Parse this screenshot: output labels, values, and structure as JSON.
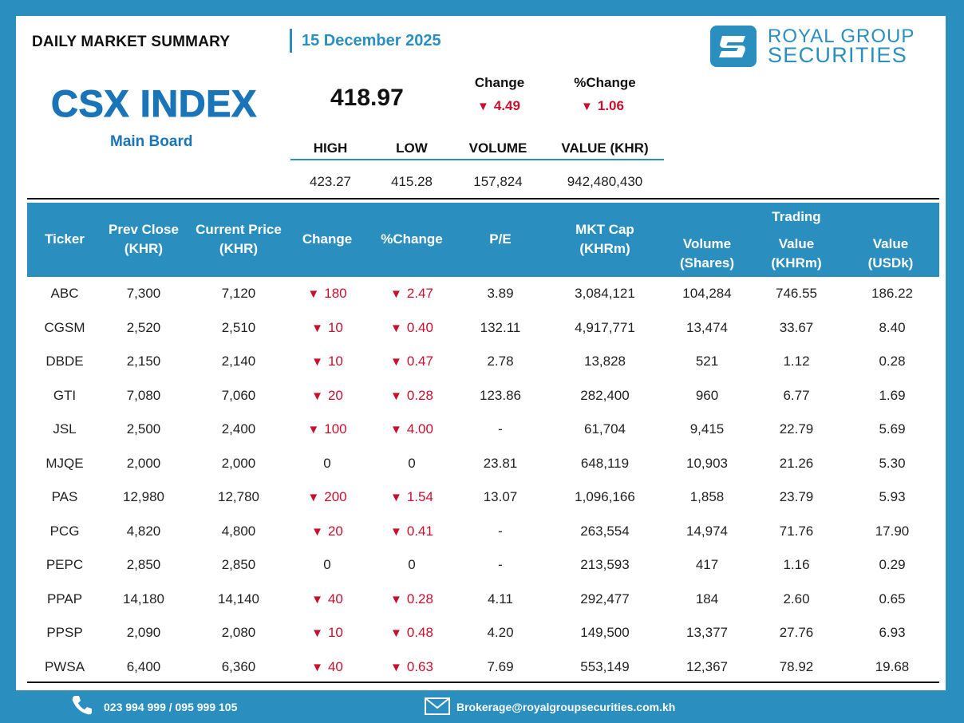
{
  "header": {
    "title": "DAILY MARKET SUMMARY",
    "date": "15 December 2025",
    "logo_line1": "ROYAL GROUP",
    "logo_line2": "SECURITIES",
    "brand_color": "#2a8fbf"
  },
  "index": {
    "name": "CSX INDEX",
    "board": "Main Board",
    "value": "418.97",
    "change_label": "Change",
    "change_value": "4.49",
    "pct_label": "%Change",
    "pct_value": "1.06",
    "stat_labels": [
      "HIGH",
      "LOW",
      "VOLUME",
      "VALUE (KHR)"
    ],
    "stat_values": [
      "423.27",
      "415.28",
      "157,824",
      "942,480,430"
    ]
  },
  "table": {
    "headers": {
      "ticker": "Ticker",
      "prev_close": "Prev Close (KHR)",
      "current_price": "Current Price (KHR)",
      "change": "Change",
      "pct_change": "%Change",
      "pe": "P/E",
      "mkt_cap": "MKT Cap (KHRm)",
      "trading": "Trading",
      "volume": "Volume (Shares)",
      "value_khr": "Value (KHRm)",
      "value_usd": "Value (USDk)"
    },
    "rows": [
      {
        "ticker": "ABC",
        "prev": "7,300",
        "cur": "7,120",
        "chg": "180",
        "pct": "2.47",
        "down": true,
        "pe": "3.89",
        "cap": "3,084,121",
        "vol": "104,284",
        "vkhr": "746.55",
        "vusd": "186.22"
      },
      {
        "ticker": "CGSM",
        "prev": "2,520",
        "cur": "2,510",
        "chg": "10",
        "pct": "0.40",
        "down": true,
        "pe": "132.11",
        "cap": "4,917,771",
        "vol": "13,474",
        "vkhr": "33.67",
        "vusd": "8.40"
      },
      {
        "ticker": "DBDE",
        "prev": "2,150",
        "cur": "2,140",
        "chg": "10",
        "pct": "0.47",
        "down": true,
        "pe": "2.78",
        "cap": "13,828",
        "vol": "521",
        "vkhr": "1.12",
        "vusd": "0.28"
      },
      {
        "ticker": "GTI",
        "prev": "7,080",
        "cur": "7,060",
        "chg": "20",
        "pct": "0.28",
        "down": true,
        "pe": "123.86",
        "cap": "282,400",
        "vol": "960",
        "vkhr": "6.77",
        "vusd": "1.69"
      },
      {
        "ticker": "JSL",
        "prev": "2,500",
        "cur": "2,400",
        "chg": "100",
        "pct": "4.00",
        "down": true,
        "pe": "-",
        "cap": "61,704",
        "vol": "9,415",
        "vkhr": "22.79",
        "vusd": "5.69"
      },
      {
        "ticker": "MJQE",
        "prev": "2,000",
        "cur": "2,000",
        "chg": "0",
        "pct": "0",
        "down": false,
        "pe": "23.81",
        "cap": "648,119",
        "vol": "10,903",
        "vkhr": "21.26",
        "vusd": "5.30"
      },
      {
        "ticker": "PAS",
        "prev": "12,980",
        "cur": "12,780",
        "chg": "200",
        "pct": "1.54",
        "down": true,
        "pe": "13.07",
        "cap": "1,096,166",
        "vol": "1,858",
        "vkhr": "23.79",
        "vusd": "5.93"
      },
      {
        "ticker": "PCG",
        "prev": "4,820",
        "cur": "4,800",
        "chg": "20",
        "pct": "0.41",
        "down": true,
        "pe": "-",
        "cap": "263,554",
        "vol": "14,974",
        "vkhr": "71.76",
        "vusd": "17.90"
      },
      {
        "ticker": "PEPC",
        "prev": "2,850",
        "cur": "2,850",
        "chg": "0",
        "pct": "0",
        "down": false,
        "pe": "-",
        "cap": "213,593",
        "vol": "417",
        "vkhr": "1.16",
        "vusd": "0.29"
      },
      {
        "ticker": "PPAP",
        "prev": "14,180",
        "cur": "14,140",
        "chg": "40",
        "pct": "0.28",
        "down": true,
        "pe": "4.11",
        "cap": "292,477",
        "vol": "184",
        "vkhr": "2.60",
        "vusd": "0.65"
      },
      {
        "ticker": "PPSP",
        "prev": "2,090",
        "cur": "2,080",
        "chg": "10",
        "pct": "0.48",
        "down": true,
        "pe": "4.20",
        "cap": "149,500",
        "vol": "13,377",
        "vkhr": "27.76",
        "vusd": "6.93"
      },
      {
        "ticker": "PWSA",
        "prev": "6,400",
        "cur": "6,360",
        "chg": "40",
        "pct": "0.63",
        "down": true,
        "pe": "7.69",
        "cap": "553,149",
        "vol": "12,367",
        "vkhr": "78.92",
        "vusd": "19.68"
      }
    ]
  },
  "footer": {
    "phone": "023 994 999 / 095 999 105",
    "email": "Brokerage@royalgroupsecurities.com.kh"
  }
}
